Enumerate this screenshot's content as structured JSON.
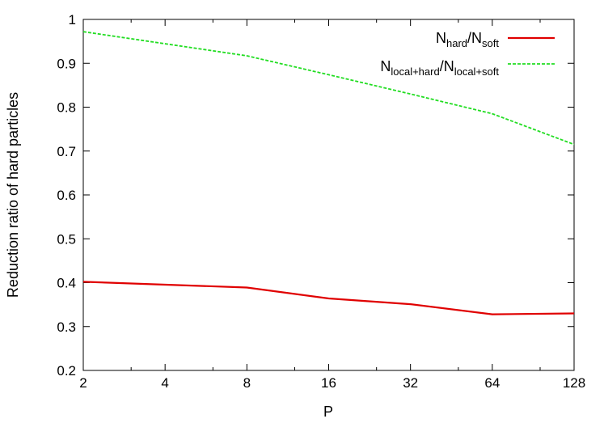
{
  "chart_data": {
    "type": "line",
    "title": "",
    "xlabel": "P",
    "ylabel": "Reduction ratio of hard particles",
    "x_scale": "log2",
    "x_ticks": [
      2,
      4,
      8,
      16,
      32,
      64,
      128
    ],
    "xlim": [
      2,
      128
    ],
    "ylim": [
      0.2,
      1.0
    ],
    "y_ticks": [
      0.2,
      0.3,
      0.4,
      0.5,
      0.6,
      0.7,
      0.8,
      0.9,
      1.0
    ],
    "y_tick_labels": [
      "0.2",
      "0.3",
      "0.4",
      "0.5",
      "0.6",
      "0.7",
      "0.8",
      "0.9",
      "1"
    ],
    "grid": false,
    "legend_position": "top-right",
    "series": [
      {
        "legend": {
          "parts": [
            {
              "t": "N",
              "sub": false
            },
            {
              "t": "hard",
              "sub": true
            },
            {
              "t": "/N",
              "sub": false
            },
            {
              "t": "soft",
              "sub": true
            }
          ]
        },
        "color": "#e00000",
        "dash": "solid",
        "x": [
          2,
          8,
          16,
          32,
          64,
          128
        ],
        "y": [
          0.402,
          0.389,
          0.364,
          0.351,
          0.328,
          0.33
        ]
      },
      {
        "legend": {
          "parts": [
            {
              "t": "N",
              "sub": false
            },
            {
              "t": "local+hard",
              "sub": true
            },
            {
              "t": "/N",
              "sub": false
            },
            {
              "t": "local+soft",
              "sub": true
            }
          ]
        },
        "color": "#22dd22",
        "dash": "dashed",
        "x": [
          2,
          8,
          16,
          32,
          64,
          128
        ],
        "y": [
          0.972,
          0.917,
          0.874,
          0.83,
          0.785,
          0.715
        ]
      }
    ]
  }
}
